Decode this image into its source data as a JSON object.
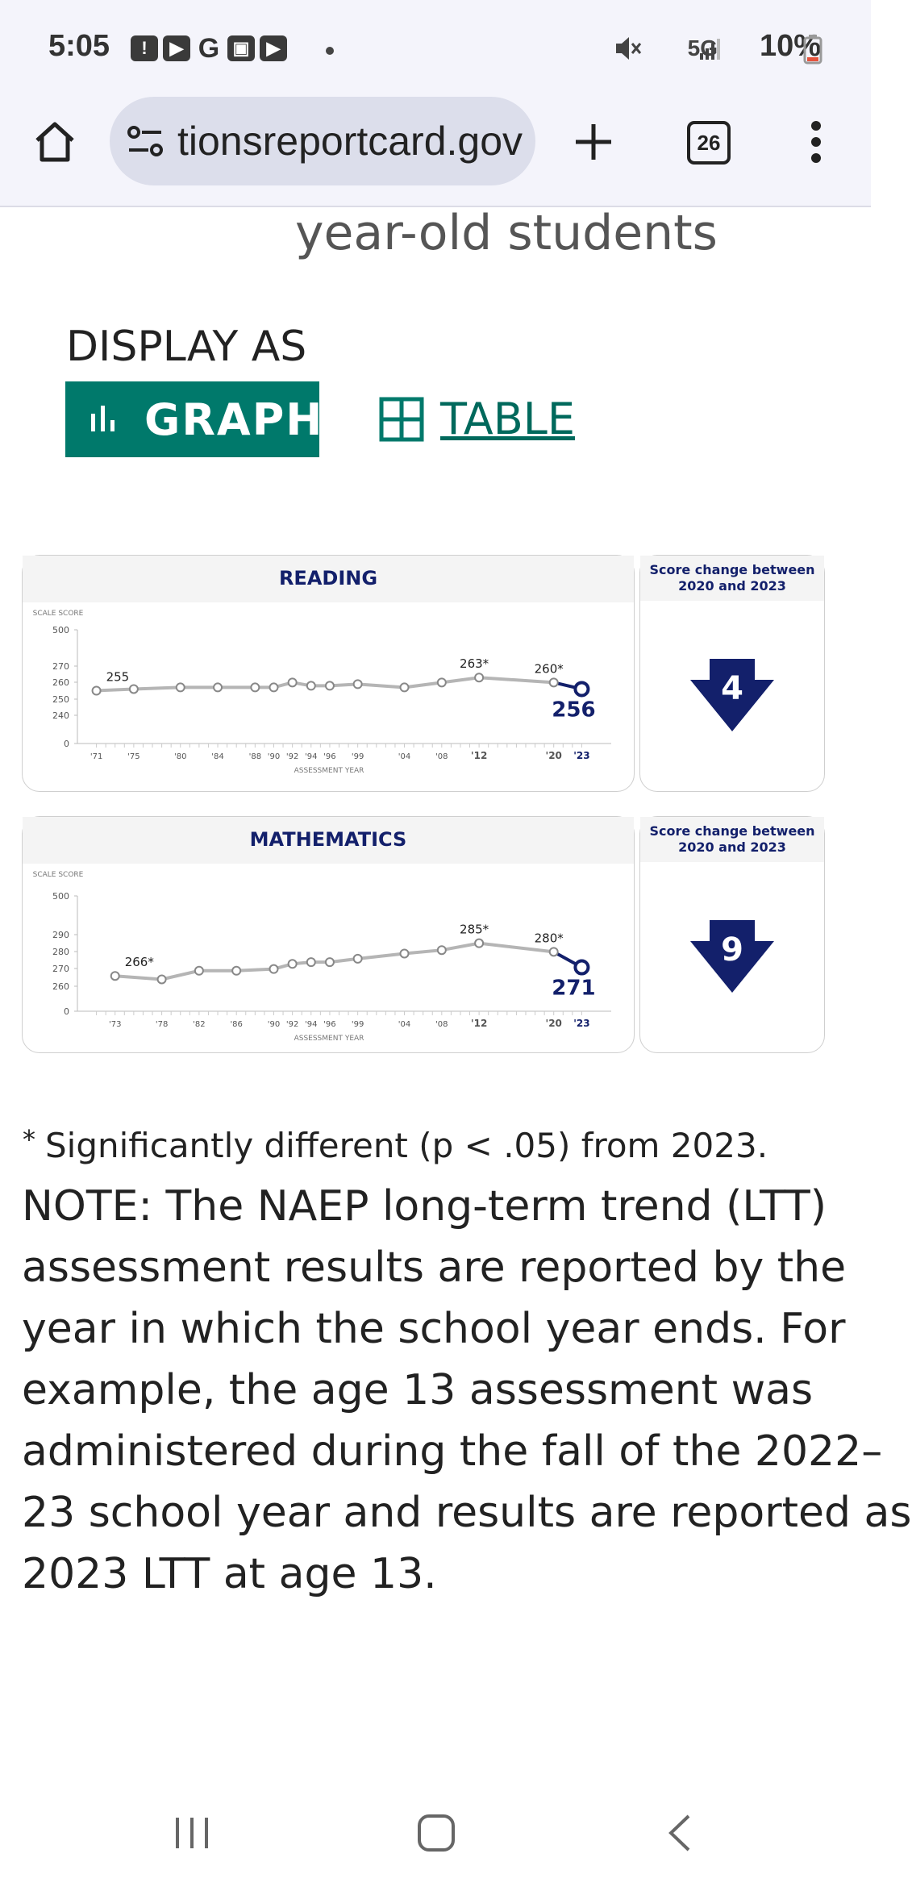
{
  "status_bar": {
    "time": "5:05",
    "notification_icons": [
      "!",
      "▶",
      "G",
      "▣",
      "▶"
    ],
    "network": "5G",
    "battery": "10%"
  },
  "browser": {
    "url": "tionsreportcard.gov",
    "tab_count": "26"
  },
  "page": {
    "heading": "year-old students",
    "display_as_label": "DISPLAY AS",
    "graph_button_label": "GRAPH",
    "table_button_label": "TABLE"
  },
  "chart_data": [
    {
      "type": "line",
      "title": "READING",
      "ylabel": "SCALE SCORE",
      "xlabel": "ASSESSMENT YEAR",
      "y_ticks": [
        "0",
        "240",
        "250",
        "260",
        "270",
        "500"
      ],
      "x_ticks": [
        "'71",
        "'75",
        "'80",
        "'84",
        "'88",
        "'90",
        "'92",
        "'94",
        "'96",
        "'99",
        "'04",
        "'08",
        "'12",
        "'20",
        "'23"
      ],
      "x": [
        1971,
        1975,
        1980,
        1984,
        1988,
        1990,
        1992,
        1994,
        1996,
        1999,
        2004,
        2008,
        2012,
        2020,
        2023
      ],
      "values": [
        255,
        256,
        257,
        257,
        257,
        257,
        260,
        258,
        258,
        259,
        257,
        260,
        263,
        260,
        256
      ],
      "labels": [
        {
          "year": 1971,
          "text": "255"
        },
        {
          "year": 2012,
          "text": "263*"
        },
        {
          "year": 2020,
          "text": "260*"
        },
        {
          "year": 2023,
          "text": "256"
        }
      ],
      "score_change_title": "Score change between 2020 and 2023",
      "score_change": "4"
    },
    {
      "type": "line",
      "title": "MATHEMATICS",
      "ylabel": "SCALE SCORE",
      "xlabel": "ASSESSMENT YEAR",
      "y_ticks": [
        "0",
        "260",
        "270",
        "280",
        "290",
        "500"
      ],
      "x_ticks": [
        "'73",
        "'78",
        "'82",
        "'86",
        "'90",
        "'92",
        "'94",
        "'96",
        "'99",
        "'04",
        "'08",
        "'12",
        "'20",
        "'23"
      ],
      "x": [
        1973,
        1978,
        1982,
        1986,
        1990,
        1992,
        1994,
        1996,
        1999,
        2004,
        2008,
        2012,
        2020,
        2023
      ],
      "values": [
        266,
        264,
        269,
        269,
        270,
        273,
        274,
        274,
        276,
        279,
        281,
        285,
        280,
        271
      ],
      "labels": [
        {
          "year": 1973,
          "text": "266*"
        },
        {
          "year": 2012,
          "text": "285*"
        },
        {
          "year": 2020,
          "text": "280*"
        },
        {
          "year": 2023,
          "text": "271"
        }
      ],
      "score_change_title": "Score change between 2020 and 2023",
      "score_change": "9"
    }
  ],
  "footnote": {
    "star": "*",
    "text": "Significantly different (p < .05) from 2023."
  },
  "note": "NOTE: The NAEP long-term trend (LTT)\nassessment results are reported by the\nyear in which the school year ends. For\nexample, the age 13 assessment was\nadministered during the fall of the 2022–\n23 school year and results are reported as\n2023 LTT at age 13.",
  "colors": {
    "accent": "#00796b",
    "navy": "#13206b",
    "line": "#b5b5b5"
  }
}
